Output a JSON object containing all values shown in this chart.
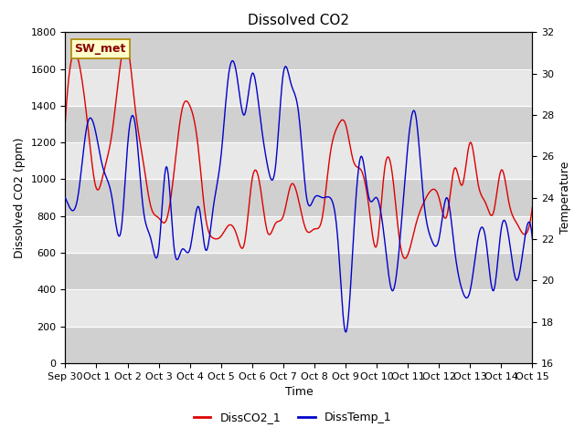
{
  "title": "Dissolved CO2",
  "xlabel": "Time",
  "ylabel_left": "Dissolved CO2 (ppm)",
  "ylabel_right": "Temperature",
  "ylim_left": [
    0,
    1800
  ],
  "ylim_right": [
    16,
    32
  ],
  "yticks_left": [
    0,
    200,
    400,
    600,
    800,
    1000,
    1200,
    1400,
    1600,
    1800
  ],
  "yticks_right": [
    16,
    18,
    20,
    22,
    24,
    26,
    28,
    30,
    32
  ],
  "xtick_labels": [
    "Sep 30",
    "Oct 1",
    "Oct 2",
    "Oct 3",
    "Oct 4",
    "Oct 5",
    "Oct 6",
    "Oct 7",
    "Oct 8",
    "Oct 9",
    "Oct 10",
    "Oct 11",
    "Oct 12",
    "Oct 13",
    "Oct 14",
    "Oct 15"
  ],
  "legend_label_red": "DissCO2_1",
  "legend_label_blue": "DissTemp_1",
  "annotation_text": "SW_met",
  "annotation_bg": "#ffffcc",
  "annotation_fg": "#8b0000",
  "line_color_red": "#dd0000",
  "line_color_blue": "#0000cc",
  "background_color": "#ffffff",
  "plot_bg_color": "#e8e8e8",
  "band_dark_color": "#d0d0d0",
  "band_light_color": "#e8e8e8",
  "grid_color": "#ffffff",
  "title_fontsize": 11,
  "axis_label_fontsize": 9,
  "tick_fontsize": 8,
  "legend_fontsize": 9,
  "co2_x": [
    0,
    0.25,
    0.5,
    0.75,
    1.0,
    1.25,
    1.5,
    1.75,
    2.0,
    2.25,
    2.5,
    2.75,
    3.0,
    3.25,
    3.5,
    3.75,
    4.0,
    4.25,
    4.5,
    4.75,
    5.0,
    5.25,
    5.5,
    5.75,
    6.0,
    6.25,
    6.5,
    6.75,
    7.0,
    7.25,
    7.5,
    7.75,
    8.0,
    8.25,
    8.5,
    8.75,
    9.0,
    9.25,
    9.5,
    9.75,
    10.0,
    10.25,
    10.5,
    10.75,
    11.0,
    11.25,
    11.5,
    11.75,
    12.0,
    12.25,
    12.5,
    12.75,
    13.0,
    13.25,
    13.5,
    13.75,
    14.0,
    14.25,
    14.5,
    14.75,
    15.0
  ],
  "co2_y": [
    1310,
    1680,
    1580,
    1250,
    950,
    1050,
    1250,
    1600,
    1720,
    1380,
    1100,
    850,
    790,
    780,
    1050,
    1380,
    1400,
    1200,
    800,
    680,
    690,
    750,
    700,
    650,
    1000,
    970,
    710,
    760,
    800,
    970,
    880,
    720,
    730,
    790,
    1130,
    1290,
    1300,
    1100,
    1050,
    850,
    640,
    1050,
    1030,
    650,
    590,
    750,
    870,
    940,
    900,
    800,
    1060,
    970,
    1200,
    980,
    870,
    820,
    1050,
    870,
    760,
    700,
    850
  ],
  "temp_x": [
    0,
    0.15,
    0.4,
    0.7,
    1.0,
    1.2,
    1.5,
    1.8,
    2.0,
    2.25,
    2.5,
    2.75,
    3.0,
    3.25,
    3.5,
    3.75,
    4.0,
    4.3,
    4.5,
    4.75,
    5.0,
    5.25,
    5.5,
    5.75,
    6.0,
    6.25,
    6.5,
    6.75,
    7.0,
    7.25,
    7.5,
    7.75,
    8.0,
    8.25,
    8.5,
    8.75,
    9.0,
    9.25,
    9.5,
    9.75,
    10.0,
    10.25,
    10.5,
    10.75,
    11.0,
    11.25,
    11.5,
    11.75,
    12.0,
    12.25,
    12.5,
    12.75,
    13.0,
    13.25,
    13.5,
    13.75,
    14.0,
    14.25,
    14.5,
    14.75,
    15.0
  ],
  "temp_y": [
    24.0,
    23.5,
    24.0,
    27.5,
    27.0,
    25.5,
    24.0,
    22.5,
    26.5,
    27.5,
    23.5,
    22.0,
    21.5,
    25.5,
    21.5,
    21.5,
    21.5,
    23.5,
    21.5,
    23.5,
    26.0,
    30.0,
    30.0,
    28.0,
    30.0,
    28.0,
    25.5,
    25.5,
    30.0,
    29.5,
    28.0,
    24.0,
    24.0,
    24.0,
    24.0,
    22.0,
    17.5,
    22.0,
    26.0,
    24.0,
    24.0,
    22.0,
    19.5,
    22.0,
    26.5,
    28.0,
    24.0,
    22.0,
    22.0,
    24.0,
    21.5,
    19.5,
    19.5,
    22.0,
    22.0,
    19.5,
    22.5,
    22.0,
    20.0,
    22.0,
    22.0
  ]
}
